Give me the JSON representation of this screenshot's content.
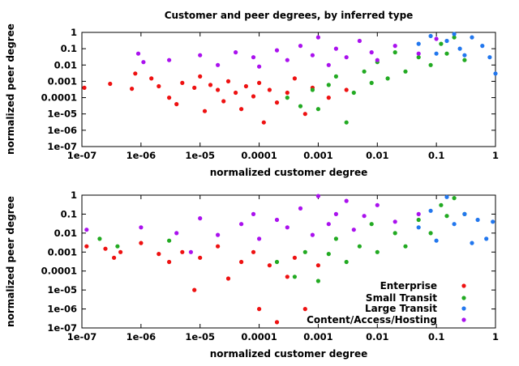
{
  "figure_title": "Customer and peer degrees, by inferred type",
  "colors": {
    "Enterprise": "#ee1111",
    "Small Transit": "#22aa22",
    "Large Transit": "#2277ee",
    "Content/Access/Hosting": "#aa11ee"
  },
  "chart_data": [
    {
      "type": "scatter",
      "title": "Customer and peer degrees, by inferred type",
      "xlabel": "normalized customer degree",
      "ylabel": "normalized peer degree",
      "x_scale": "log",
      "y_scale": "log",
      "xlim": [
        1e-07,
        1
      ],
      "ylim": [
        1e-07,
        1
      ],
      "x_ticks": [
        "1e-07",
        "1e-06",
        "1e-05",
        "0.0001",
        "0.001",
        "0.01",
        "0.1",
        "1"
      ],
      "y_ticks": [
        "1e-07",
        "1e-06",
        "1e-05",
        "0.0001",
        "0.001",
        "0.01",
        "0.1",
        "1"
      ],
      "grid": false,
      "legend": null,
      "series": [
        {
          "name": "Enterprise",
          "points": [
            [
              1.1e-07,
              0.0004
            ],
            [
              3e-07,
              0.0007
            ],
            [
              7e-07,
              0.00035
            ],
            [
              8e-07,
              0.003
            ],
            [
              1.5e-06,
              0.0015
            ],
            [
              2e-06,
              0.0005
            ],
            [
              3e-06,
              0.0001
            ],
            [
              4e-06,
              4e-05
            ],
            [
              5e-06,
              0.0008
            ],
            [
              8e-06,
              0.0004
            ],
            [
              1e-05,
              0.002
            ],
            [
              1.2e-05,
              1.5e-05
            ],
            [
              1.5e-05,
              0.0006
            ],
            [
              2e-05,
              0.0003
            ],
            [
              2.5e-05,
              6e-05
            ],
            [
              3e-05,
              0.001
            ],
            [
              4e-05,
              0.0002
            ],
            [
              5e-05,
              2e-05
            ],
            [
              6e-05,
              0.0005
            ],
            [
              8e-05,
              0.00012
            ],
            [
              0.0001,
              0.0008
            ],
            [
              0.00012,
              3e-06
            ],
            [
              0.00015,
              0.0003
            ],
            [
              0.0002,
              5e-05
            ],
            [
              0.0003,
              0.0002
            ],
            [
              0.0004,
              0.0015
            ],
            [
              0.0006,
              1e-05
            ],
            [
              0.0008,
              0.0004
            ],
            [
              0.0015,
              0.0001
            ],
            [
              0.003,
              0.0003
            ]
          ]
        },
        {
          "name": "Small Transit",
          "points": [
            [
              0.0003,
              0.0001
            ],
            [
              0.0005,
              3e-05
            ],
            [
              0.0008,
              0.0003
            ],
            [
              0.001,
              2e-05
            ],
            [
              0.0015,
              0.0006
            ],
            [
              0.002,
              0.002
            ],
            [
              0.003,
              3e-06
            ],
            [
              0.004,
              0.0002
            ],
            [
              0.006,
              0.004
            ],
            [
              0.008,
              0.0008
            ],
            [
              0.01,
              0.015
            ],
            [
              0.015,
              0.0015
            ],
            [
              0.02,
              0.06
            ],
            [
              0.03,
              0.004
            ],
            [
              0.05,
              0.03
            ],
            [
              0.08,
              0.01
            ],
            [
              0.12,
              0.2
            ],
            [
              0.15,
              0.05
            ],
            [
              0.2,
              0.5
            ],
            [
              0.3,
              0.02
            ]
          ]
        },
        {
          "name": "Large Transit",
          "points": [
            [
              0.05,
              0.2
            ],
            [
              0.08,
              0.6
            ],
            [
              0.1,
              0.05
            ],
            [
              0.15,
              0.3
            ],
            [
              0.2,
              0.8
            ],
            [
              0.25,
              0.1
            ],
            [
              0.3,
              0.04
            ],
            [
              0.4,
              0.5
            ],
            [
              0.6,
              0.15
            ],
            [
              0.8,
              0.03
            ],
            [
              1,
              0.003
            ]
          ]
        },
        {
          "name": "Content/Access/Hosting",
          "points": [
            [
              9e-07,
              0.05
            ],
            [
              1.1e-06,
              0.015
            ],
            [
              3e-06,
              0.02
            ],
            [
              1e-05,
              0.04
            ],
            [
              2e-05,
              0.01
            ],
            [
              4e-05,
              0.06
            ],
            [
              8e-05,
              0.03
            ],
            [
              0.0001,
              0.008
            ],
            [
              0.0002,
              0.08
            ],
            [
              0.0003,
              0.02
            ],
            [
              0.0005,
              0.15
            ],
            [
              0.0008,
              0.04
            ],
            [
              0.001,
              0.5
            ],
            [
              0.0015,
              0.01
            ],
            [
              0.002,
              0.1
            ],
            [
              0.003,
              0.03
            ],
            [
              0.005,
              0.3
            ],
            [
              0.008,
              0.06
            ],
            [
              0.01,
              0.02
            ],
            [
              0.02,
              0.15
            ],
            [
              0.05,
              0.05
            ],
            [
              0.1,
              0.4
            ]
          ]
        }
      ]
    },
    {
      "type": "scatter",
      "xlabel": "normalized customer degree",
      "ylabel": "normalized peer degree",
      "x_scale": "log",
      "y_scale": "log",
      "xlim": [
        1e-07,
        1
      ],
      "ylim": [
        1e-07,
        1
      ],
      "x_ticks": [
        "1e-07",
        "1e-06",
        "1e-05",
        "0.0001",
        "0.001",
        "0.01",
        "0.1",
        "1"
      ],
      "y_ticks": [
        "1e-07",
        "1e-06",
        "1e-05",
        "0.0001",
        "0.001",
        "0.01",
        "0.1",
        "1"
      ],
      "grid": false,
      "legend": "bottom-right",
      "series": [
        {
          "name": "Enterprise",
          "points": [
            [
              1.2e-07,
              0.002
            ],
            [
              2.5e-07,
              0.0015
            ],
            [
              3.5e-07,
              0.0005
            ],
            [
              4.5e-07,
              0.001
            ],
            [
              1e-06,
              0.003
            ],
            [
              2e-06,
              0.0008
            ],
            [
              3e-06,
              0.0003
            ],
            [
              5e-06,
              0.001
            ],
            [
              8e-06,
              1e-05
            ],
            [
              1e-05,
              0.0005
            ],
            [
              2e-05,
              0.002
            ],
            [
              3e-05,
              4e-05
            ],
            [
              5e-05,
              0.0003
            ],
            [
              8e-05,
              0.001
            ],
            [
              0.0001,
              1e-06
            ],
            [
              0.00015,
              0.0002
            ],
            [
              0.0002,
              2e-07
            ],
            [
              0.0003,
              5e-05
            ],
            [
              0.0004,
              0.0005
            ],
            [
              0.0006,
              1e-06
            ],
            [
              0.001,
              0.0002
            ]
          ]
        },
        {
          "name": "Small Transit",
          "points": [
            [
              2e-07,
              0.005
            ],
            [
              4e-07,
              0.002
            ],
            [
              3e-06,
              0.004
            ],
            [
              0.0002,
              0.0003
            ],
            [
              0.0004,
              5e-05
            ],
            [
              0.0006,
              0.001
            ],
            [
              0.001,
              3e-05
            ],
            [
              0.0015,
              0.0008
            ],
            [
              0.002,
              0.005
            ],
            [
              0.003,
              0.0003
            ],
            [
              0.005,
              0.002
            ],
            [
              0.008,
              0.03
            ],
            [
              0.01,
              0.001
            ],
            [
              0.02,
              0.01
            ],
            [
              0.03,
              0.002
            ],
            [
              0.05,
              0.05
            ],
            [
              0.08,
              0.01
            ],
            [
              0.12,
              0.3
            ],
            [
              0.15,
              0.08
            ],
            [
              0.2,
              0.7
            ],
            [
              0.3,
              0.1
            ]
          ]
        },
        {
          "name": "Large Transit",
          "points": [
            [
              0.05,
              0.02
            ],
            [
              0.08,
              0.15
            ],
            [
              0.1,
              0.004
            ],
            [
              0.15,
              0.8
            ],
            [
              0.2,
              0.03
            ],
            [
              0.3,
              0.1
            ],
            [
              0.4,
              0.003
            ],
            [
              0.5,
              0.05
            ],
            [
              0.7,
              0.005
            ],
            [
              0.9,
              0.04
            ]
          ]
        },
        {
          "name": "Content/Access/Hosting",
          "points": [
            [
              1.2e-07,
              0.015
            ],
            [
              1e-06,
              0.02
            ],
            [
              4e-06,
              0.01
            ],
            [
              7e-06,
              0.001
            ],
            [
              1e-05,
              0.06
            ],
            [
              2e-05,
              0.008
            ],
            [
              5e-05,
              0.03
            ],
            [
              8e-05,
              0.1
            ],
            [
              0.0001,
              0.005
            ],
            [
              0.0002,
              0.05
            ],
            [
              0.0003,
              0.02
            ],
            [
              0.0005,
              0.2
            ],
            [
              0.0008,
              0.008
            ],
            [
              0.001,
              0.9
            ],
            [
              0.0015,
              0.03
            ],
            [
              0.002,
              0.1
            ],
            [
              0.003,
              0.5
            ],
            [
              0.004,
              0.015
            ],
            [
              0.006,
              0.08
            ],
            [
              0.01,
              0.3
            ],
            [
              0.02,
              0.04
            ],
            [
              0.05,
              0.1
            ]
          ]
        }
      ]
    }
  ]
}
